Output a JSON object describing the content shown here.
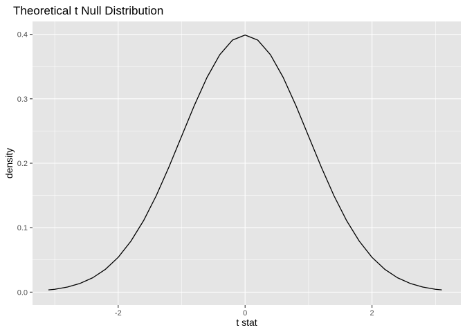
{
  "chart_data": {
    "type": "line",
    "title": "Theoretical t Null Distribution",
    "xlabel": "t stat",
    "ylabel": "density",
    "xlim": [
      -3.35,
      3.4
    ],
    "ylim": [
      -0.02,
      0.42
    ],
    "x_ticks": [
      -2,
      0,
      2
    ],
    "x_tick_labels": [
      "-2",
      "0",
      "2"
    ],
    "x_minor_ticks": [
      -3,
      -1,
      1,
      3
    ],
    "y_ticks": [
      0.0,
      0.1,
      0.2,
      0.3,
      0.4
    ],
    "y_tick_labels": [
      "0.0",
      "0.1",
      "0.2",
      "0.3",
      "0.4"
    ],
    "y_minor_ticks": [
      0.05,
      0.15,
      0.25,
      0.35
    ],
    "grid": true,
    "theme": "ggplot2-grey",
    "line_color": "#000000",
    "panel_background": "#e5e5e5",
    "grid_color": "#ffffff",
    "series": [
      {
        "x": [
          -3.1,
          -3.0,
          -2.8,
          -2.6,
          -2.4,
          -2.2,
          -2.0,
          -1.8,
          -1.6,
          -1.4,
          -1.2,
          -1.0,
          -0.8,
          -0.6,
          -0.4,
          -0.2,
          0.0,
          0.2,
          0.4,
          0.6,
          0.8,
          1.0,
          1.2,
          1.4,
          1.6,
          1.8,
          2.0,
          2.2,
          2.4,
          2.6,
          2.8,
          3.0,
          3.1
        ],
        "y": [
          0.0035,
          0.0044,
          0.0079,
          0.0136,
          0.0224,
          0.0355,
          0.054,
          0.079,
          0.1109,
          0.1497,
          0.1942,
          0.242,
          0.2897,
          0.3332,
          0.3683,
          0.391,
          0.3989,
          0.391,
          0.3683,
          0.3332,
          0.2897,
          0.242,
          0.1942,
          0.1497,
          0.1109,
          0.079,
          0.054,
          0.0355,
          0.0224,
          0.0136,
          0.0079,
          0.0044,
          0.0035
        ]
      }
    ]
  }
}
